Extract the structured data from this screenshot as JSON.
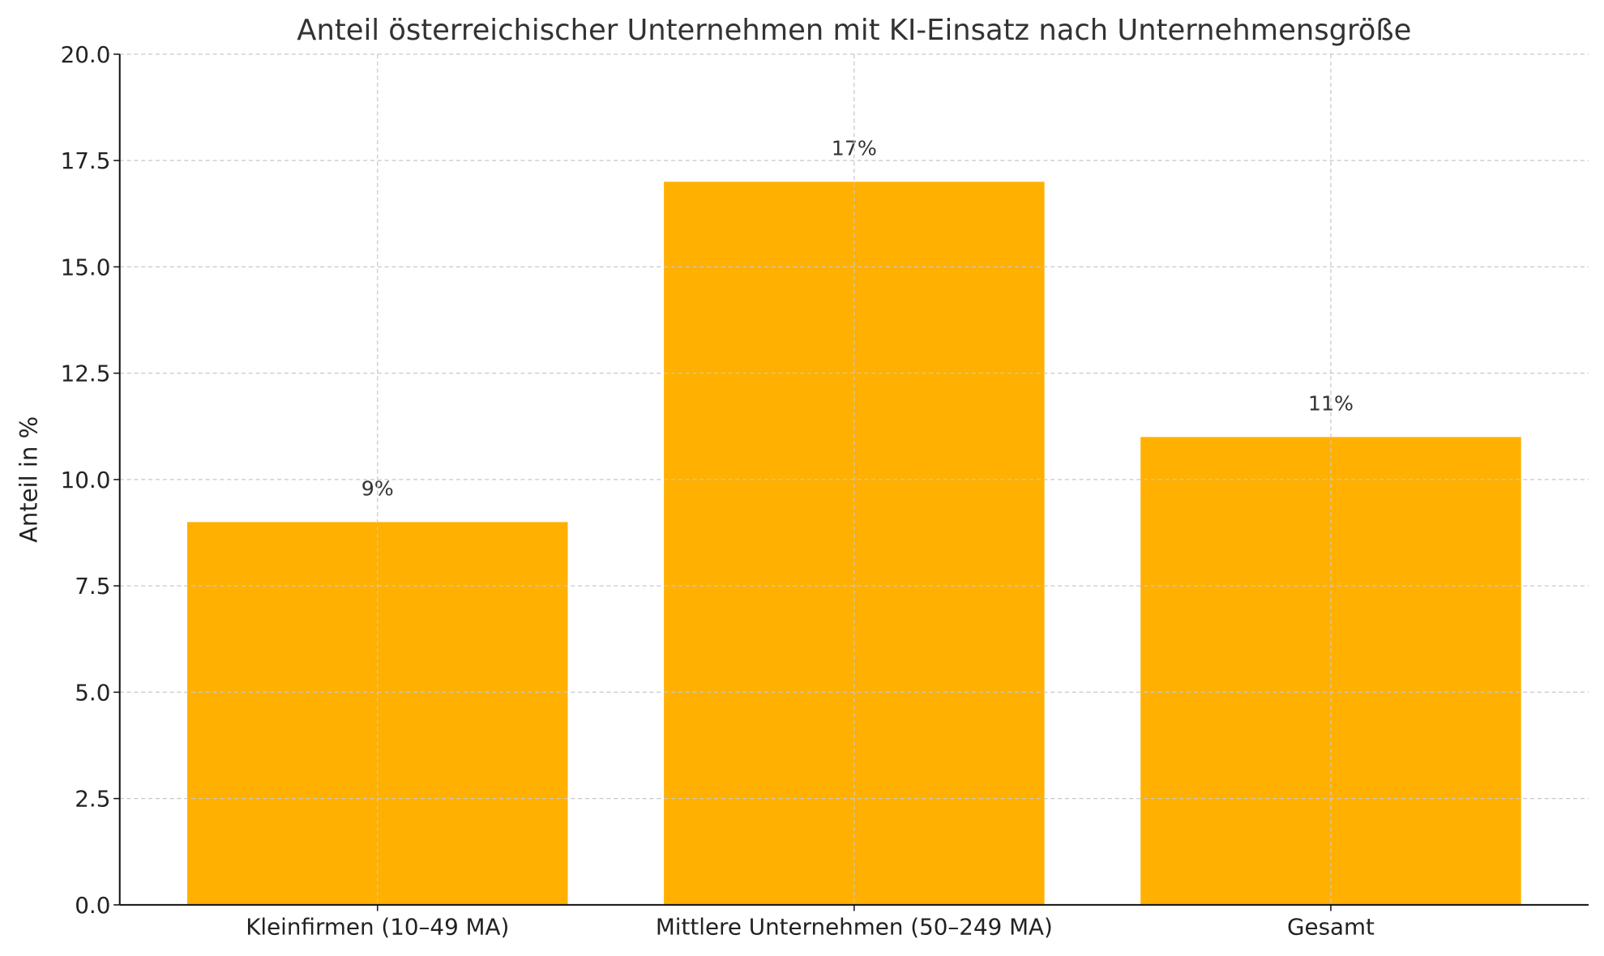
{
  "chart_data": {
    "type": "bar",
    "title": "Anteil österreichischer Unternehmen mit KI-Einsatz nach Unternehmensgröße",
    "xlabel": "",
    "ylabel": "Anteil in %",
    "categories": [
      "Kleinfirmen (10–49 MA)",
      "Mittlere Unternehmen (50–249 MA)",
      "Gesamt"
    ],
    "values": [
      9,
      17,
      11
    ],
    "data_labels": [
      "9%",
      "17%",
      "11%"
    ],
    "ylim": [
      0,
      20
    ],
    "yticks": [
      "0.0",
      "2.5",
      "5.0",
      "7.5",
      "10.0",
      "12.5",
      "15.0",
      "17.5",
      "20.0"
    ],
    "grid": true,
    "bar_color": "#FFB000"
  }
}
